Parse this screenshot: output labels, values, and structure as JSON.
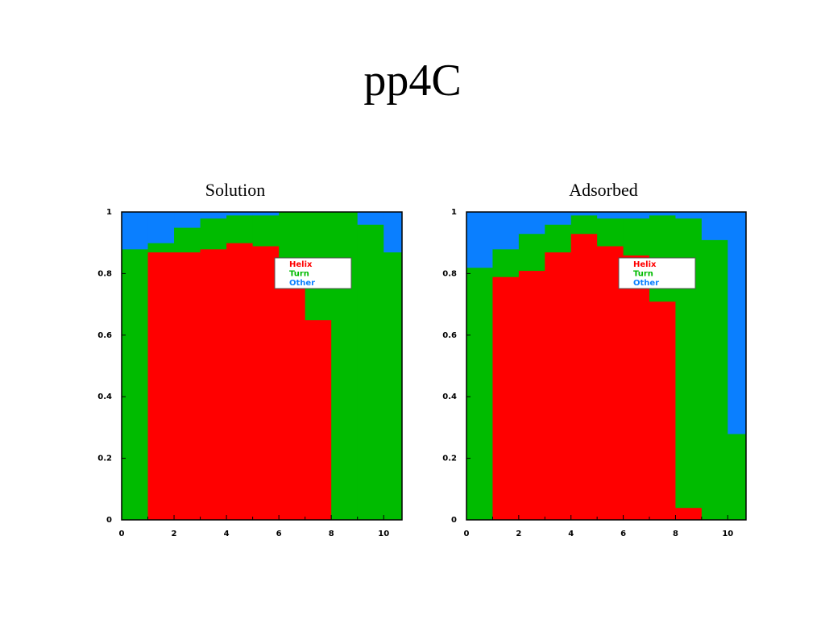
{
  "slide_title": "pp4C",
  "colors": {
    "helix": "#ff0000",
    "turn": "#00bb00",
    "other": "#0a7fff"
  },
  "chart_data": [
    {
      "type": "area",
      "stacked": "step",
      "title": "Solution",
      "xlim": [
        0,
        10.7
      ],
      "ylim": [
        0,
        1
      ],
      "xticks": [
        "0",
        "2",
        "4",
        "6",
        "8",
        "10"
      ],
      "yticks": [
        "0",
        "0.2",
        "0.4",
        "0.6",
        "0.8",
        "1"
      ],
      "legend_position": "upper-right",
      "bins": [
        0,
        1,
        2,
        3,
        4,
        5,
        6,
        7,
        8,
        9,
        10
      ],
      "series": [
        {
          "name": "Helix",
          "color": "#ff0000",
          "values": [
            0.0,
            0.87,
            0.87,
            0.88,
            0.9,
            0.89,
            0.76,
            0.65,
            0.0,
            0.0,
            0.0
          ]
        },
        {
          "name": "Turn",
          "color": "#00bb00",
          "values": [
            0.88,
            0.03,
            0.08,
            0.1,
            0.09,
            0.1,
            0.24,
            0.35,
            1.0,
            0.96,
            0.87
          ]
        },
        {
          "name": "Other",
          "color": "#0a7fff",
          "values": [
            0.12,
            0.1,
            0.05,
            0.02,
            0.01,
            0.01,
            0.0,
            0.0,
            0.0,
            0.04,
            0.13
          ]
        }
      ]
    },
    {
      "type": "area",
      "stacked": "step",
      "title": "Adsorbed",
      "xlim": [
        0,
        10.7
      ],
      "ylim": [
        0,
        1
      ],
      "xticks": [
        "0",
        "2",
        "4",
        "6",
        "8",
        "10"
      ],
      "yticks": [
        "0",
        "0.2",
        "0.4",
        "0.6",
        "0.8",
        "1"
      ],
      "legend_position": "upper-right",
      "bins": [
        0,
        1,
        2,
        3,
        4,
        5,
        6,
        7,
        8,
        9,
        10
      ],
      "series": [
        {
          "name": "Helix",
          "color": "#ff0000",
          "values": [
            0.0,
            0.79,
            0.81,
            0.87,
            0.93,
            0.89,
            0.86,
            0.71,
            0.04,
            0.0,
            0.0
          ]
        },
        {
          "name": "Turn",
          "color": "#00bb00",
          "values": [
            0.82,
            0.09,
            0.12,
            0.09,
            0.06,
            0.09,
            0.12,
            0.28,
            0.94,
            0.91,
            0.28
          ]
        },
        {
          "name": "Other",
          "color": "#0a7fff",
          "values": [
            0.18,
            0.12,
            0.07,
            0.04,
            0.01,
            0.02,
            0.02,
            0.01,
            0.02,
            0.09,
            0.72
          ]
        }
      ]
    }
  ]
}
